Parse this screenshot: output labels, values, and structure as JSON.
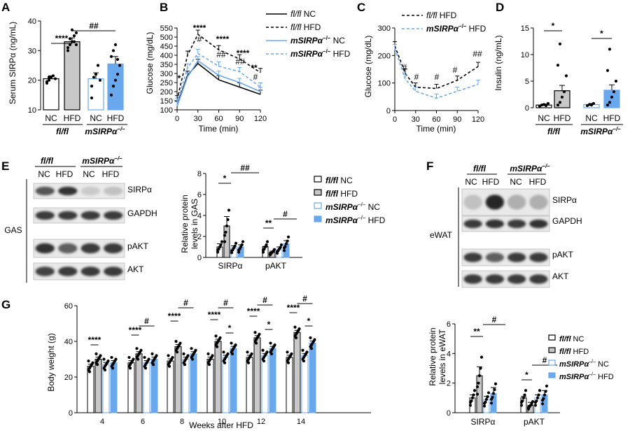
{
  "panel_letters": [
    "A",
    "B",
    "C",
    "D",
    "E",
    "F",
    "G"
  ],
  "colors": {
    "hfd_blue": "#6aa8ee",
    "nc_blue": "#7fb0f0",
    "grey": "#c8c8c8",
    "blot_bg": "#e9e9e9"
  },
  "labels": {
    "flfl": "fl/fl",
    "msirpa": "mSIRPα",
    "msirpa_sup": "–/–",
    "nc": "NC",
    "hfd": "HFD",
    "flfl_nc": "fl/fl NC",
    "flfl_hfd": "fl/fl HFD",
    "msirpa_nc": "NC",
    "msirpa_hfd": "HFD",
    "gas": "GAS",
    "ewat": "eWAT",
    "sirpa": "SIRPα",
    "gapdh": "GAPDH",
    "pakt": "pAKT",
    "akt": "AKT"
  },
  "chart_data": [
    {
      "panel": "A",
      "type": "bar",
      "ylabel": "Serum SIRPα (ng/mL)",
      "ylim": [
        10,
        40
      ],
      "yticks": [
        10,
        20,
        30,
        40
      ],
      "categories": [
        "NC",
        "HFD",
        "NC",
        "HFD"
      ],
      "groups": [
        "fl/fl",
        "mSIRPα–/–"
      ],
      "values": [
        20.5,
        33.0,
        20.5,
        25.5
      ],
      "errors": [
        1.0,
        1.3,
        2.0,
        2.5
      ],
      "points": [
        [
          19.5,
          20,
          21,
          21.5,
          20.5,
          19,
          21
        ],
        [
          30,
          32,
          33,
          35,
          36,
          31,
          34,
          37,
          33,
          32
        ],
        [
          14,
          21,
          22,
          25,
          20,
          18
        ],
        [
          15,
          18,
          20,
          22,
          25,
          28,
          30,
          32,
          27
        ]
      ],
      "annotations": [
        "****",
        "##"
      ]
    },
    {
      "panel": "B",
      "type": "line",
      "xlabel": "Time (min)",
      "ylabel": "Glucose (mg/dL)",
      "xlim": [
        0,
        120
      ],
      "ylim": [
        100,
        550
      ],
      "xticks": [
        0,
        30,
        60,
        90,
        120
      ],
      "yticks": [
        100,
        150,
        200,
        250,
        300,
        350,
        400,
        450,
        500,
        550
      ],
      "x": [
        0,
        15,
        30,
        60,
        90,
        120
      ],
      "series": [
        {
          "name": "fl/fl NC",
          "values": [
            125,
            290,
            355,
            265,
            225,
            185
          ]
        },
        {
          "name": "fl/fl HFD",
          "values": [
            155,
            400,
            515,
            430,
            380,
            305
          ]
        },
        {
          "name": "mSIRPα–/– NC",
          "values": [
            120,
            280,
            370,
            290,
            250,
            200
          ]
        },
        {
          "name": "mSIRPα–/– HFD",
          "values": [
            140,
            330,
            410,
            340,
            310,
            225
          ]
        }
      ],
      "annotations": [
        "*",
        "****",
        "#",
        "****",
        "##",
        "****",
        "##",
        "**",
        "#"
      ]
    },
    {
      "panel": "C",
      "type": "line",
      "xlabel": "Time (min)",
      "ylabel": "Glucose (mg/dL)",
      "xlim": [
        0,
        120
      ],
      "ylim": [
        0,
        300
      ],
      "xticks": [
        0,
        30,
        60,
        90,
        120
      ],
      "yticks": [
        0,
        100,
        200,
        300
      ],
      "x": [
        0,
        15,
        30,
        60,
        90,
        120
      ],
      "series": [
        {
          "name": "fl/fl HFD",
          "values": [
            235,
            135,
            85,
            80,
            110,
            160
          ]
        },
        {
          "name": "mSIRPα–/– HFD",
          "values": [
            225,
            115,
            70,
            45,
            70,
            95
          ]
        }
      ],
      "annotations": [
        "#",
        "#",
        "#",
        "#",
        "##"
      ]
    },
    {
      "panel": "D",
      "type": "bar",
      "ylabel": "Insulin (ng/mL)",
      "ylim": [
        0,
        15
      ],
      "yticks": [
        0,
        5,
        10,
        15
      ],
      "categories": [
        "NC",
        "HFD",
        "NC",
        "HFD"
      ],
      "groups": [
        "fl/fl",
        "mSIRPα–/–"
      ],
      "values": [
        0.5,
        3.2,
        0.6,
        3.3
      ],
      "errors": [
        0.2,
        1.0,
        0.2,
        1.0
      ],
      "points": [
        [
          0.3,
          0.5,
          0.6,
          0.4,
          0.8
        ],
        [
          0.5,
          1,
          2,
          3,
          6,
          8,
          12
        ],
        [
          0.4,
          0.6,
          0.5,
          0.8
        ],
        [
          0.5,
          1,
          2,
          3,
          5,
          7,
          11
        ]
      ],
      "annotations": [
        "*",
        "*"
      ]
    },
    {
      "panel": "E",
      "type": "bar",
      "ylabel": "Relative protein levels in GAS",
      "ylim": [
        0,
        8
      ],
      "yticks": [
        0,
        2,
        4,
        6,
        8
      ],
      "categories": [
        "SIRPα",
        "pAKT"
      ],
      "series": [
        {
          "name": "fl/fl NC",
          "values": [
            1.0,
            1.0
          ],
          "errors": [
            0.3,
            0.05
          ]
        },
        {
          "name": "fl/fl HFD",
          "values": [
            3.0,
            0.5
          ],
          "errors": [
            0.9,
            0.1
          ]
        },
        {
          "name": "mSIRPα–/– NC",
          "values": [
            0.9,
            0.8
          ],
          "errors": [
            0.2,
            0.2
          ]
        },
        {
          "name": "mSIRPα–/– HFD",
          "values": [
            1.0,
            1.3
          ],
          "errors": [
            0.2,
            0.3
          ]
        }
      ],
      "annotations": [
        "*",
        "##",
        "**",
        "#"
      ]
    },
    {
      "panel": "F",
      "type": "bar",
      "ylabel": "Relative protein levels in eWAT",
      "ylim": [
        0,
        6
      ],
      "yticks": [
        0,
        2,
        4,
        6
      ],
      "categories": [
        "SIRPα",
        "pAKT"
      ],
      "series": [
        {
          "name": "fl/fl NC",
          "values": [
            1.0,
            1.0
          ],
          "errors": [
            0.2,
            0.1
          ]
        },
        {
          "name": "fl/fl HFD",
          "values": [
            2.5,
            0.5
          ],
          "errors": [
            0.6,
            0.2
          ]
        },
        {
          "name": "mSIRPα–/– NC",
          "values": [
            0.9,
            1.0
          ],
          "errors": [
            0.2,
            0.2
          ]
        },
        {
          "name": "mSIRPα–/– HFD",
          "values": [
            1.3,
            1.2
          ],
          "errors": [
            0.4,
            0.3
          ]
        }
      ],
      "annotations": [
        "**",
        "#",
        "*",
        "#"
      ]
    },
    {
      "panel": "G",
      "type": "bar",
      "xlabel": "Weeks after HFD",
      "ylabel": "Body weight (g)",
      "ylim": [
        0,
        60
      ],
      "yticks": [
        0,
        20,
        40,
        60
      ],
      "categories": [
        "4",
        "6",
        "8",
        "10",
        "12",
        "14"
      ],
      "series": [
        {
          "name": "fl/fl NC",
          "values": [
            26,
            28,
            29,
            30,
            31,
            31
          ]
        },
        {
          "name": "fl/fl HFD",
          "values": [
            30,
            33,
            37,
            40,
            42,
            45
          ]
        },
        {
          "name": "mSIRPα–/– NC",
          "values": [
            27,
            28,
            30,
            31,
            32,
            32
          ]
        },
        {
          "name": "mSIRPα–/– HFD",
          "values": [
            28,
            30,
            33,
            36,
            36,
            39
          ]
        }
      ],
      "annotations": [
        "****",
        "****",
        "#",
        "****",
        "#",
        "****",
        "#",
        "*",
        "****",
        "#",
        "*",
        "****",
        "#",
        "*"
      ]
    }
  ]
}
